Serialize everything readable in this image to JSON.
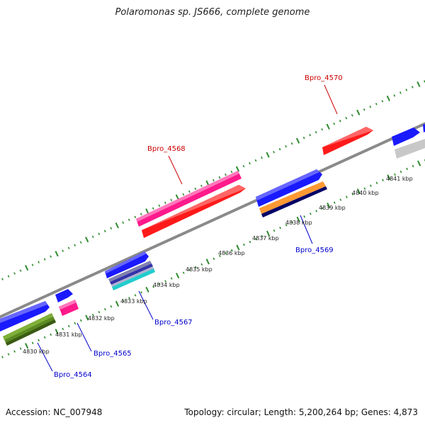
{
  "title": "Polaromonas sp. JS666, complete genome",
  "footer": {
    "accession": "Accession: NC_007948",
    "summary": "Topology: circular; Length: 5,200,264 bp; Genes: 4,873"
  },
  "colors": {
    "backbone": "#8a8a8a",
    "ticks": "#2e8b2e",
    "label_reverse": "#cc0000",
    "label_forward": "#0000cc"
  },
  "tick_labels": [
    "4830 kbp",
    "4831 kbp",
    "4832 kbp",
    "4833 kbp",
    "4834 kbp",
    "4835 kbp",
    "4836 kbp",
    "4837 kbp",
    "4838 kbp",
    "4839 kbp",
    "4840 kbp",
    "4841 kbp"
  ],
  "gene_labels": [
    {
      "text": "Bpro_4570",
      "color": "#cc0000"
    },
    {
      "text": "Bpro_4568",
      "color": "#cc0000"
    },
    {
      "text": "Bpro_4569",
      "color": "#0000cc"
    },
    {
      "text": "Bpro_4567",
      "color": "#0000cc"
    },
    {
      "text": "Bpro_4565",
      "color": "#0000cc"
    },
    {
      "text": "Bpro_4564",
      "color": "#0000cc"
    }
  ]
}
